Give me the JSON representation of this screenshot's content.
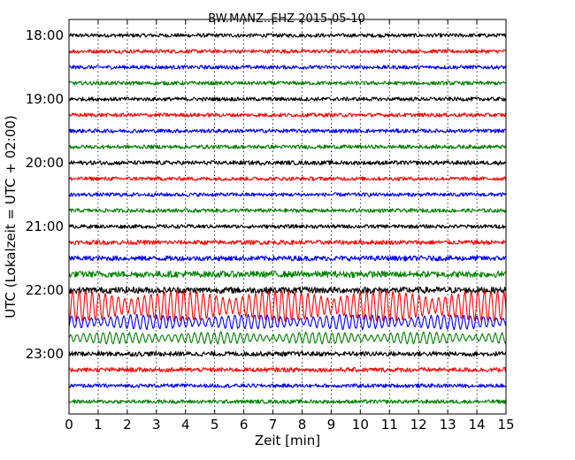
{
  "chart_data": {
    "type": "line",
    "title": "BW.MANZ..EHZ 2015-05-10",
    "xlabel": "Zeit  [min]",
    "ylabel": "UTC (Lokalzeit = UTC + 02:00)",
    "xlim": [
      0,
      15
    ],
    "x_ticks": [
      "0",
      "1",
      "2",
      "3",
      "4",
      "5",
      "6",
      "7",
      "8",
      "9",
      "10",
      "11",
      "12",
      "13",
      "14",
      "15"
    ],
    "y_ticks": [
      "18:00",
      "19:00",
      "20:00",
      "21:00",
      "22:00",
      "23:00"
    ],
    "grid": "vertical dotted",
    "line_minutes": 15,
    "trace_colors": [
      "#000000",
      "#ff0000",
      "#0000ff",
      "#008000"
    ],
    "traces": [
      {
        "start": "18:00",
        "amplitude": 0.12
      },
      {
        "start": "18:15",
        "amplitude": 0.12
      },
      {
        "start": "18:30",
        "amplitude": 0.12
      },
      {
        "start": "18:45",
        "amplitude": 0.12
      },
      {
        "start": "19:00",
        "amplitude": 0.12
      },
      {
        "start": "19:15",
        "amplitude": 0.12
      },
      {
        "start": "19:30",
        "amplitude": 0.12
      },
      {
        "start": "19:45",
        "amplitude": 0.12
      },
      {
        "start": "20:00",
        "amplitude": 0.13
      },
      {
        "start": "20:15",
        "amplitude": 0.12
      },
      {
        "start": "20:30",
        "amplitude": 0.12
      },
      {
        "start": "20:45",
        "amplitude": 0.12
      },
      {
        "start": "21:00",
        "amplitude": 0.12
      },
      {
        "start": "21:15",
        "amplitude": 0.14
      },
      {
        "start": "21:30",
        "amplitude": 0.16
      },
      {
        "start": "21:45",
        "amplitude": 0.2
      },
      {
        "start": "22:00",
        "amplitude": 0.2
      },
      {
        "start": "22:15",
        "amplitude": 0.95
      },
      {
        "start": "22:30",
        "amplitude": 0.45
      },
      {
        "start": "22:45",
        "amplitude": 0.35
      },
      {
        "start": "23:00",
        "amplitude": 0.15
      },
      {
        "start": "23:15",
        "amplitude": 0.14
      },
      {
        "start": "23:30",
        "amplitude": 0.12
      },
      {
        "start": "23:45",
        "amplitude": 0.12
      }
    ]
  }
}
